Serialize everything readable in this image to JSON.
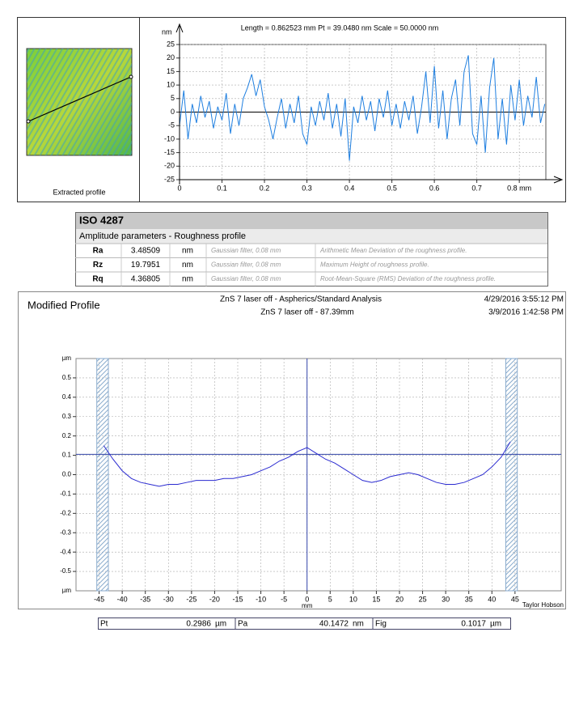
{
  "chart_data": [
    {
      "type": "line",
      "title": "Length = 0.862523 mm  Pt = 39.0480 nm  Scale = 50.0000 nm",
      "ylabel": "nm",
      "color": "#1f7fe0",
      "grid": true,
      "thumbnail_caption": "Extracted profile",
      "xlim": [
        0,
        0.862523
      ],
      "ylim": [
        -25,
        25
      ],
      "xticks": [
        0,
        0.1,
        0.2,
        0.3,
        0.4,
        0.5,
        0.6,
        0.7,
        {
          "value": 0.8,
          "label": "0.8 mm"
        }
      ],
      "yticks": [
        -25,
        -20,
        -15,
        -10,
        -5,
        0,
        5,
        10,
        15,
        20,
        25
      ],
      "x": [
        0,
        0.01,
        0.02,
        0.03,
        0.04,
        0.05,
        0.06,
        0.07,
        0.08,
        0.09,
        0.1,
        0.11,
        0.12,
        0.13,
        0.14,
        0.15,
        0.16,
        0.17,
        0.18,
        0.19,
        0.2,
        0.21,
        0.22,
        0.23,
        0.24,
        0.25,
        0.26,
        0.27,
        0.28,
        0.29,
        0.3,
        0.31,
        0.32,
        0.33,
        0.34,
        0.35,
        0.36,
        0.37,
        0.38,
        0.39,
        0.4,
        0.41,
        0.42,
        0.43,
        0.44,
        0.45,
        0.46,
        0.47,
        0.48,
        0.49,
        0.5,
        0.51,
        0.52,
        0.53,
        0.54,
        0.55,
        0.56,
        0.57,
        0.58,
        0.59,
        0.6,
        0.61,
        0.62,
        0.63,
        0.64,
        0.65,
        0.66,
        0.67,
        0.68,
        0.69,
        0.7,
        0.71,
        0.72,
        0.73,
        0.74,
        0.75,
        0.76,
        0.77,
        0.78,
        0.79,
        0.8,
        0.81,
        0.82,
        0.83,
        0.84,
        0.85,
        0.86
      ],
      "values": [
        -5,
        8,
        -10,
        3,
        -4,
        6,
        -2,
        4,
        -6,
        2,
        -3,
        7,
        -8,
        3,
        -5,
        5,
        9,
        14,
        6,
        12,
        2,
        -3,
        -10,
        -2,
        5,
        -6,
        3,
        -4,
        6,
        -8,
        -12,
        2,
        -5,
        4,
        -3,
        7,
        -6,
        3,
        -9,
        5,
        -18,
        2,
        -4,
        6,
        -3,
        4,
        -7,
        5,
        -2,
        8,
        -5,
        3,
        -6,
        4,
        -3,
        6,
        -8,
        2,
        15,
        -4,
        17,
        -6,
        8,
        -10,
        5,
        12,
        -5,
        15,
        21,
        -8,
        -12,
        6,
        -15,
        9,
        20,
        -10,
        5,
        -12,
        10,
        -3,
        12,
        -5,
        6,
        -2,
        13,
        -4,
        3
      ]
    },
    {
      "type": "line",
      "title": "Modified Profile",
      "subtitle": "ZnS 7 laser off - Aspherics/Standard Analysis",
      "subtitle2": "ZnS 7 laser off - 87.39mm",
      "date1": "4/29/2016 3:55:12 PM",
      "date2": "3/9/2016 1:42:58 PM",
      "ylabel": "µm",
      "xlabel": "mm",
      "brand": "Taylor Hobson",
      "color": "#2a2ad0",
      "grid": true,
      "hline": 0.105,
      "vline": 0,
      "shaded": [
        [
          -45.5,
          -43
        ],
        [
          43,
          45.5
        ]
      ],
      "xlim": [
        -50,
        55
      ],
      "ylim": [
        -0.6,
        0.6
      ],
      "xticks": [
        -45,
        -40,
        -35,
        -30,
        -25,
        -20,
        -15,
        -10,
        -5,
        0,
        5,
        10,
        15,
        20,
        25,
        30,
        35,
        40,
        45
      ],
      "yticks": [
        0.5,
        0.4,
        0.3,
        0.2,
        0.1,
        {
          "value": 0,
          "label": "0.0"
        },
        -0.1,
        -0.2,
        -0.3,
        -0.4,
        -0.5
      ],
      "x": [
        -44,
        -42,
        -40,
        -38,
        -36,
        -34,
        -32,
        -30,
        -28,
        -26,
        -24,
        -22,
        -20,
        -18,
        -16,
        -14,
        -12,
        -10,
        -8,
        -6,
        -4,
        -2,
        0,
        2,
        4,
        6,
        8,
        10,
        12,
        14,
        16,
        18,
        20,
        22,
        24,
        26,
        28,
        30,
        32,
        34,
        36,
        38,
        40,
        42,
        44
      ],
      "values": [
        0.15,
        0.08,
        0.02,
        -0.02,
        -0.04,
        -0.05,
        -0.06,
        -0.05,
        -0.05,
        -0.04,
        -0.03,
        -0.03,
        -0.03,
        -0.02,
        -0.02,
        -0.01,
        0,
        0.02,
        0.04,
        0.07,
        0.09,
        0.12,
        0.14,
        0.11,
        0.08,
        0.06,
        0.03,
        0,
        -0.03,
        -0.04,
        -0.03,
        -0.01,
        0,
        0.01,
        0,
        -0.02,
        -0.04,
        -0.05,
        -0.05,
        -0.04,
        -0.02,
        0,
        0.04,
        0.09,
        0.17
      ]
    }
  ],
  "table": {
    "title": "ISO 4287",
    "subtitle": "Amplitude parameters - Roughness profile",
    "rows": [
      [
        "Ra",
        3.48509,
        "nm",
        "Gaussian filter, 0.08 mm",
        "Arithmetic Mean Deviation of the roughness profile."
      ],
      [
        "Rz",
        19.7951,
        "nm",
        "Gaussian filter, 0.08 mm",
        "Maximum Height of roughness profile."
      ],
      [
        "Rq",
        4.36805,
        "nm",
        "Gaussian filter, 0.08 mm",
        "Root-Mean-Square (RMS) Deviation of the roughness profile."
      ]
    ]
  },
  "summary": [
    {
      "label": "Pt",
      "value": 0.2986,
      "unit": "µm"
    },
    {
      "label": "Pa",
      "value": 40.1472,
      "unit": "nm"
    },
    {
      "label": "Fig",
      "value": 0.1017,
      "unit": "µm"
    }
  ]
}
